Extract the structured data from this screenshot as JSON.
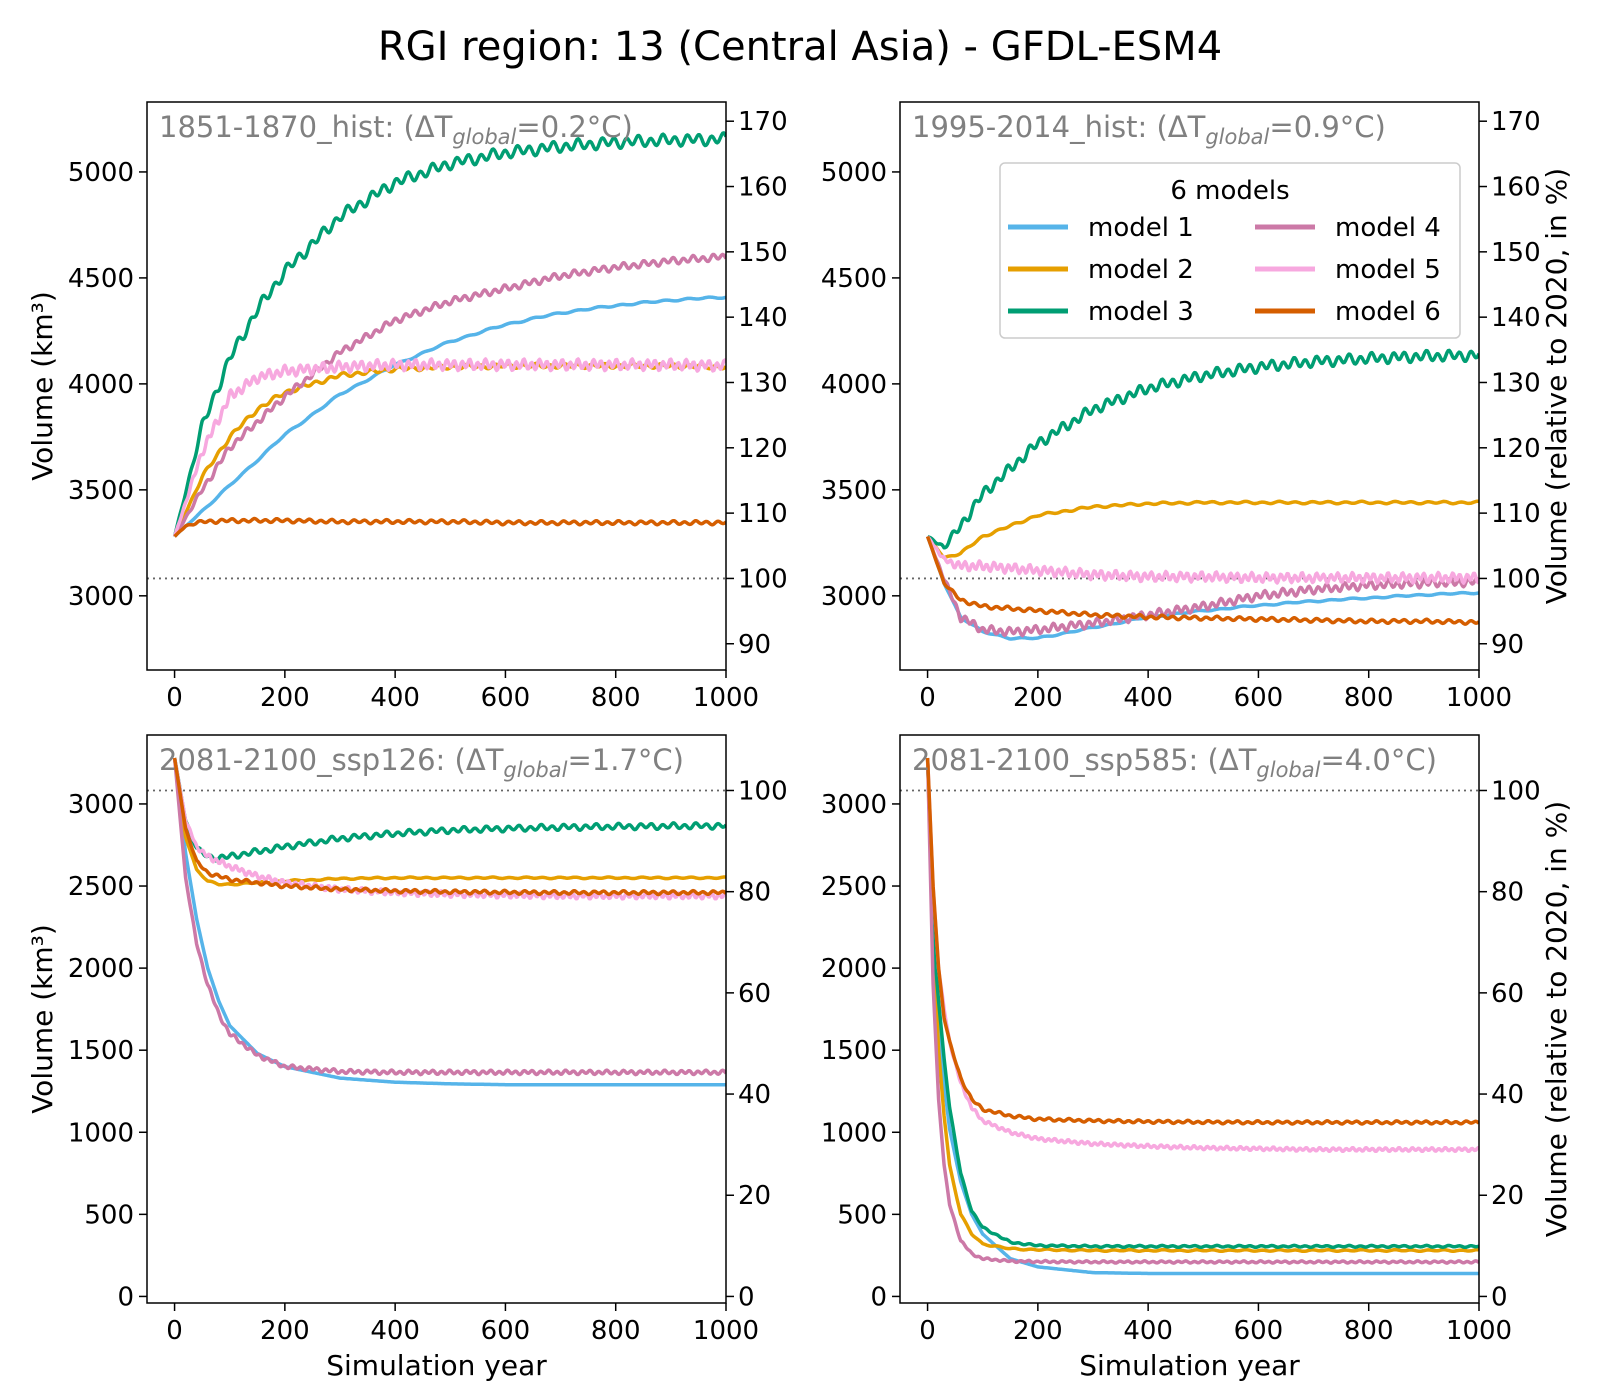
{
  "figure": {
    "title": "RGI region: 13 (Central Asia) - GFDL-ESM4"
  },
  "legend": {
    "title": "6 models",
    "entries": [
      {
        "name": "model 1",
        "color": "#56b4e9"
      },
      {
        "name": "model 2",
        "color": "#e69f00"
      },
      {
        "name": "model 3",
        "color": "#009e73"
      },
      {
        "name": "model 4",
        "color": "#cc79a7"
      },
      {
        "name": "model 5",
        "color": "#f7a8df"
      },
      {
        "name": "model 6",
        "color": "#d55e00"
      }
    ]
  },
  "chart_data": [
    {
      "type": "line",
      "panel": "top-left",
      "title_prefix": "1851-1870_hist: (ΔT",
      "title_sub": "global",
      "title_suffix": "=0.2°C)",
      "xlabel": "",
      "ylabel": "Volume (km³)",
      "ylabel_right": "",
      "xlim": [
        -50,
        1000
      ],
      "ylim": [
        2650,
        5330
      ],
      "xticks": [
        0,
        200,
        400,
        600,
        800,
        1000
      ],
      "yticks": [
        3000,
        3500,
        4000,
        4500,
        5000
      ],
      "right_ticks": [
        90,
        100,
        110,
        120,
        130,
        140,
        150,
        160,
        170
      ],
      "ref_volume": 3082,
      "series": [
        {
          "name": "model 1",
          "x": [
            0,
            50,
            100,
            200,
            300,
            400,
            500,
            600,
            700,
            800,
            900,
            1000
          ],
          "y": [
            3280,
            3400,
            3520,
            3760,
            3950,
            4090,
            4200,
            4280,
            4335,
            4370,
            4395,
            4410
          ],
          "osc_amp": 5,
          "osc_period": 40
        },
        {
          "name": "model 2",
          "x": [
            0,
            50,
            100,
            150,
            200,
            300,
            400,
            500,
            600,
            700,
            800,
            900,
            1000
          ],
          "y": [
            3280,
            3560,
            3750,
            3880,
            3960,
            4040,
            4070,
            4080,
            4085,
            4085,
            4085,
            4085,
            4080
          ],
          "osc_amp": 12,
          "osc_period": 25
        },
        {
          "name": "model 3",
          "x": [
            0,
            50,
            100,
            150,
            200,
            300,
            400,
            500,
            600,
            700,
            800,
            900,
            1000
          ],
          "y": [
            3280,
            3800,
            4120,
            4350,
            4530,
            4790,
            4950,
            5040,
            5090,
            5120,
            5140,
            5150,
            5155
          ],
          "osc_amp": 30,
          "osc_period": 22
        },
        {
          "name": "model 4",
          "x": [
            0,
            50,
            100,
            200,
            300,
            400,
            500,
            600,
            700,
            800,
            900,
            1000
          ],
          "y": [
            3280,
            3500,
            3700,
            3940,
            4150,
            4300,
            4390,
            4450,
            4510,
            4550,
            4580,
            4600
          ],
          "osc_amp": 18,
          "osc_period": 18
        },
        {
          "name": "model 5",
          "x": [
            0,
            50,
            100,
            150,
            200,
            300,
            400,
            500,
            600,
            700,
            800,
            900,
            1000
          ],
          "y": [
            3280,
            3680,
            3940,
            4030,
            4060,
            4080,
            4090,
            4090,
            4090,
            4090,
            4090,
            4090,
            4085
          ],
          "osc_amp": 28,
          "osc_period": 14
        },
        {
          "name": "model 6",
          "x": [
            0,
            20,
            50,
            100,
            200,
            300,
            400,
            500,
            600,
            700,
            800,
            900,
            1000
          ],
          "y": [
            3280,
            3330,
            3350,
            3355,
            3355,
            3350,
            3350,
            3350,
            3345,
            3345,
            3345,
            3345,
            3345
          ],
          "osc_amp": 10,
          "osc_period": 20
        }
      ]
    },
    {
      "type": "line",
      "panel": "top-right",
      "title_prefix": "1995-2014_hist: (ΔT",
      "title_sub": "global",
      "title_suffix": "=0.9°C)",
      "xlabel": "",
      "ylabel": "",
      "ylabel_right": "Volume (relative to 2020, in %)",
      "xlim": [
        -50,
        1000
      ],
      "ylim": [
        2650,
        5330
      ],
      "xticks": [
        0,
        200,
        400,
        600,
        800,
        1000
      ],
      "yticks": [
        3000,
        3500,
        4000,
        4500,
        5000
      ],
      "right_ticks": [
        90,
        100,
        110,
        120,
        130,
        140,
        150,
        160,
        170
      ],
      "ref_volume": 3082,
      "series": [
        {
          "name": "model 1",
          "x": [
            0,
            30,
            60,
            100,
            150,
            200,
            300,
            400,
            500,
            600,
            700,
            800,
            900,
            1000
          ],
          "y": [
            3280,
            3060,
            2900,
            2830,
            2800,
            2800,
            2850,
            2900,
            2930,
            2955,
            2975,
            2990,
            3005,
            3015
          ],
          "osc_amp": 4,
          "osc_period": 40
        },
        {
          "name": "model 2",
          "x": [
            0,
            30,
            60,
            100,
            200,
            300,
            400,
            500,
            600,
            700,
            800,
            900,
            1000
          ],
          "y": [
            3280,
            3180,
            3200,
            3280,
            3380,
            3420,
            3435,
            3440,
            3440,
            3440,
            3440,
            3440,
            3440
          ],
          "osc_amp": 6,
          "osc_period": 30
        },
        {
          "name": "model 3",
          "x": [
            0,
            30,
            60,
            100,
            200,
            300,
            400,
            500,
            600,
            700,
            800,
            900,
            1000
          ],
          "y": [
            3280,
            3230,
            3330,
            3480,
            3720,
            3880,
            3980,
            4040,
            4080,
            4105,
            4120,
            4130,
            4135
          ],
          "osc_amp": 28,
          "osc_period": 20
        },
        {
          "name": "model 4",
          "x": [
            0,
            30,
            60,
            100,
            150,
            200,
            300,
            400,
            500,
            600,
            700,
            800,
            900,
            1000
          ],
          "y": [
            3280,
            3080,
            2900,
            2840,
            2830,
            2840,
            2870,
            2910,
            2950,
            3000,
            3030,
            3050,
            3060,
            3065
          ],
          "osc_amp": 22,
          "osc_period": 16
        },
        {
          "name": "model 5",
          "x": [
            0,
            30,
            60,
            100,
            200,
            300,
            400,
            500,
            600,
            700,
            800,
            900,
            1000
          ],
          "y": [
            3280,
            3170,
            3140,
            3140,
            3120,
            3100,
            3090,
            3090,
            3085,
            3085,
            3085,
            3085,
            3085
          ],
          "osc_amp": 25,
          "osc_period": 13
        },
        {
          "name": "model 6",
          "x": [
            0,
            30,
            60,
            100,
            200,
            300,
            400,
            500,
            600,
            700,
            800,
            900,
            1000
          ],
          "y": [
            3280,
            3060,
            2980,
            2950,
            2930,
            2910,
            2900,
            2895,
            2890,
            2885,
            2880,
            2880,
            2875
          ],
          "osc_amp": 10,
          "osc_period": 20
        }
      ]
    },
    {
      "type": "line",
      "panel": "bottom-left",
      "title_prefix": "2081-2100_ssp126: (ΔT",
      "title_sub": "global",
      "title_suffix": "=1.7°C)",
      "xlabel": "Simulation year",
      "ylabel": "Volume (km³)",
      "ylabel_right": "",
      "xlim": [
        -50,
        1000
      ],
      "ylim": [
        -40,
        3420
      ],
      "xticks": [
        0,
        200,
        400,
        600,
        800,
        1000
      ],
      "yticks": [
        0,
        500,
        1000,
        1500,
        2000,
        2500,
        3000
      ],
      "right_ticks": [
        0,
        20,
        40,
        60,
        80,
        100
      ],
      "ref_volume": 3082,
      "series": [
        {
          "name": "model 1",
          "x": [
            0,
            20,
            40,
            60,
            80,
            100,
            150,
            200,
            300,
            400,
            500,
            600,
            700,
            800,
            900,
            1000
          ],
          "y": [
            3280,
            2700,
            2300,
            2000,
            1800,
            1650,
            1480,
            1400,
            1330,
            1305,
            1295,
            1290,
            1290,
            1290,
            1290,
            1290
          ],
          "osc_amp": 0,
          "osc_period": 40
        },
        {
          "name": "model 2",
          "x": [
            0,
            20,
            40,
            60,
            80,
            100,
            200,
            300,
            400,
            500,
            600,
            700,
            800,
            900,
            1000
          ],
          "y": [
            3280,
            2800,
            2600,
            2530,
            2510,
            2510,
            2530,
            2545,
            2550,
            2550,
            2550,
            2550,
            2550,
            2550,
            2550
          ],
          "osc_amp": 5,
          "osc_period": 30
        },
        {
          "name": "model 3",
          "x": [
            0,
            20,
            40,
            60,
            80,
            100,
            150,
            200,
            300,
            400,
            500,
            600,
            700,
            800,
            900,
            1000
          ],
          "y": [
            3280,
            2900,
            2730,
            2680,
            2670,
            2680,
            2710,
            2740,
            2790,
            2820,
            2840,
            2850,
            2858,
            2862,
            2865,
            2867
          ],
          "osc_amp": 20,
          "osc_period": 20
        },
        {
          "name": "model 4",
          "x": [
            0,
            20,
            40,
            60,
            80,
            100,
            150,
            200,
            300,
            400,
            500,
            600,
            700,
            800,
            900,
            1000
          ],
          "y": [
            3280,
            2550,
            2150,
            1900,
            1720,
            1600,
            1470,
            1400,
            1370,
            1365,
            1365,
            1365,
            1365,
            1365,
            1365,
            1365
          ],
          "osc_amp": 14,
          "osc_period": 15
        },
        {
          "name": "model 5",
          "x": [
            0,
            20,
            40,
            60,
            80,
            100,
            150,
            200,
            300,
            400,
            500,
            600,
            700,
            800,
            900,
            1000
          ],
          "y": [
            3280,
            2900,
            2740,
            2680,
            2650,
            2620,
            2560,
            2520,
            2480,
            2460,
            2450,
            2445,
            2440,
            2440,
            2440,
            2440
          ],
          "osc_amp": 20,
          "osc_period": 12
        },
        {
          "name": "model 6",
          "x": [
            0,
            20,
            40,
            60,
            80,
            100,
            200,
            300,
            400,
            500,
            600,
            700,
            800,
            900,
            1000
          ],
          "y": [
            3280,
            2850,
            2650,
            2580,
            2560,
            2540,
            2500,
            2480,
            2470,
            2465,
            2462,
            2460,
            2460,
            2460,
            2460
          ],
          "osc_amp": 12,
          "osc_period": 18
        }
      ]
    },
    {
      "type": "line",
      "panel": "bottom-right",
      "title_prefix": "2081-2100_ssp585: (ΔT",
      "title_sub": "global",
      "title_suffix": "=4.0°C)",
      "xlabel": "Simulation year",
      "ylabel": "",
      "ylabel_right": "Volume (relative to 2020, in %)",
      "xlim": [
        -50,
        1000
      ],
      "ylim": [
        -40,
        3420
      ],
      "xticks": [
        0,
        200,
        400,
        600,
        800,
        1000
      ],
      "yticks": [
        0,
        500,
        1000,
        1500,
        2000,
        2500,
        3000
      ],
      "right_ticks": [
        0,
        20,
        40,
        60,
        80,
        100
      ],
      "ref_volume": 3082,
      "series": [
        {
          "name": "model 1",
          "x": [
            0,
            10,
            20,
            30,
            40,
            60,
            80,
            100,
            150,
            200,
            300,
            400,
            500,
            600,
            700,
            800,
            900,
            1000
          ],
          "y": [
            3280,
            2300,
            1700,
            1300,
            1020,
            700,
            500,
            380,
            230,
            180,
            145,
            140,
            140,
            140,
            140,
            140,
            140,
            140
          ],
          "osc_amp": 0,
          "osc_period": 40
        },
        {
          "name": "model 2",
          "x": [
            0,
            10,
            20,
            30,
            40,
            60,
            80,
            100,
            150,
            200,
            300,
            400,
            500,
            600,
            700,
            800,
            900,
            1000
          ],
          "y": [
            3280,
            2200,
            1500,
            1100,
            800,
            500,
            380,
            320,
            290,
            285,
            280,
            280,
            280,
            280,
            280,
            280,
            280,
            280
          ],
          "osc_amp": 5,
          "osc_period": 30
        },
        {
          "name": "model 3",
          "x": [
            0,
            10,
            20,
            30,
            40,
            60,
            80,
            100,
            150,
            200,
            300,
            400,
            500,
            600,
            700,
            800,
            900,
            1000
          ],
          "y": [
            3280,
            2200,
            1800,
            1450,
            1150,
            750,
            520,
            420,
            330,
            310,
            305,
            305,
            305,
            305,
            305,
            305,
            305,
            305
          ],
          "osc_amp": 6,
          "osc_period": 20
        },
        {
          "name": "model 4",
          "x": [
            0,
            10,
            20,
            30,
            40,
            60,
            80,
            100,
            150,
            200,
            300,
            400,
            500,
            600,
            700,
            800,
            900,
            1000
          ],
          "y": [
            3280,
            1900,
            1200,
            800,
            560,
            340,
            260,
            230,
            215,
            212,
            210,
            210,
            210,
            210,
            210,
            210,
            210,
            210
          ],
          "osc_amp": 7,
          "osc_period": 15
        },
        {
          "name": "model 5",
          "x": [
            0,
            10,
            20,
            30,
            40,
            60,
            80,
            100,
            150,
            200,
            300,
            400,
            500,
            600,
            700,
            800,
            900,
            1000
          ],
          "y": [
            3280,
            2500,
            2000,
            1750,
            1550,
            1300,
            1150,
            1070,
            1000,
            960,
            930,
            915,
            905,
            900,
            895,
            895,
            895,
            895
          ],
          "osc_amp": 12,
          "osc_period": 12
        },
        {
          "name": "model 6",
          "x": [
            0,
            10,
            20,
            30,
            40,
            60,
            80,
            100,
            150,
            200,
            300,
            400,
            500,
            600,
            700,
            800,
            900,
            1000
          ],
          "y": [
            3280,
            2500,
            2000,
            1700,
            1550,
            1330,
            1200,
            1140,
            1100,
            1080,
            1070,
            1065,
            1062,
            1060,
            1060,
            1060,
            1060,
            1060
          ],
          "osc_amp": 10,
          "osc_period": 18
        }
      ]
    }
  ]
}
